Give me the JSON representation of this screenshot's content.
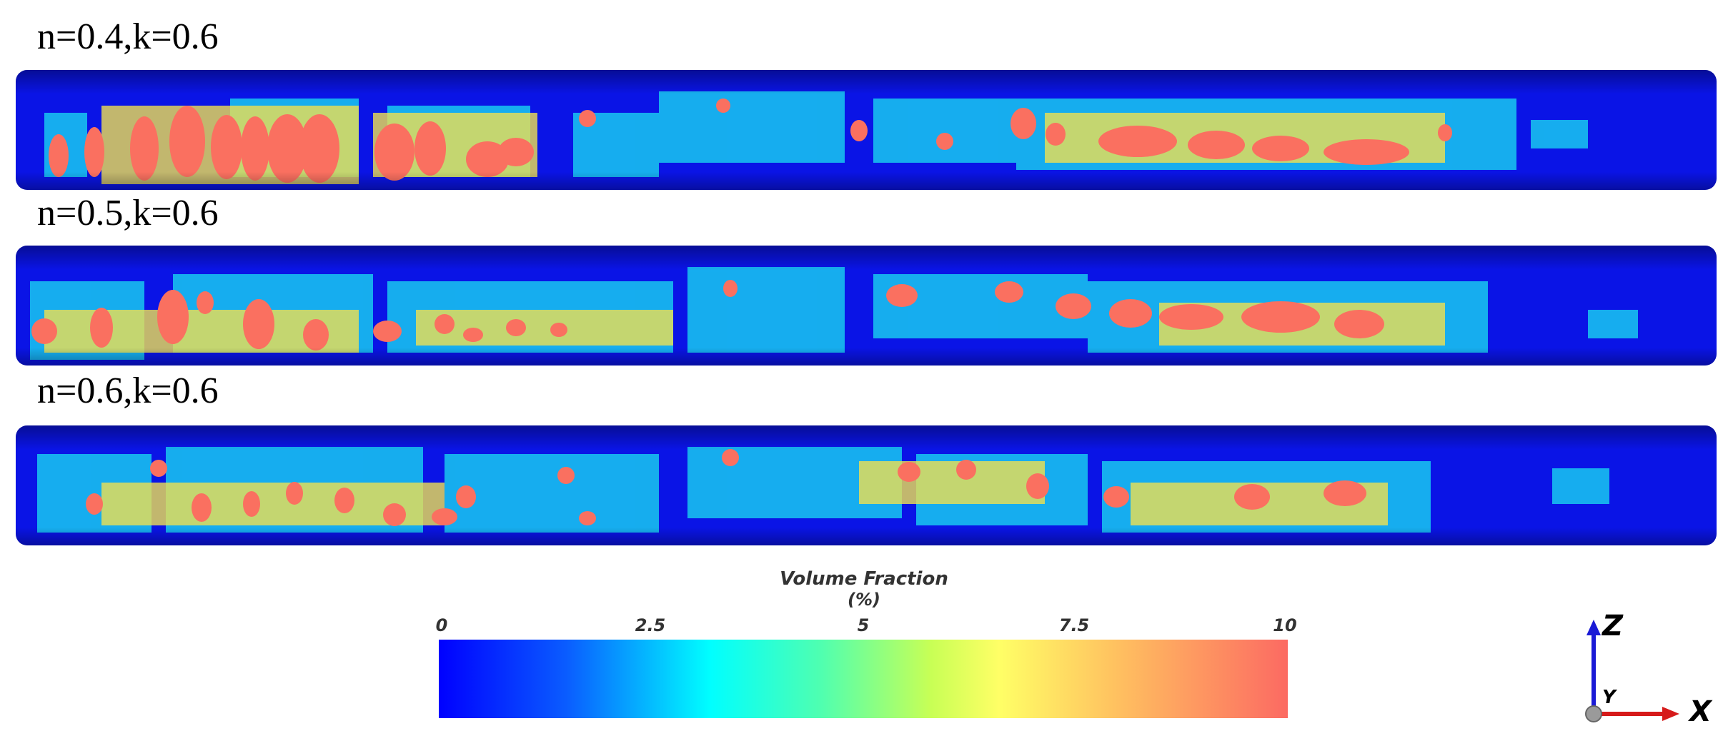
{
  "panels": [
    {
      "label": "n=0.4,k=0.6"
    },
    {
      "label": "n=0.5,k=0.6"
    },
    {
      "label": "n=0.6,k=0.6"
    }
  ],
  "colorbar": {
    "title": "Volume Fraction",
    "unit": "(%)",
    "ticks": [
      "0",
      "2.5",
      "5",
      "7.5",
      "10"
    ],
    "min": 0,
    "max": 10,
    "colors": [
      "#0000ff",
      "#00ffff",
      "#ffff66",
      "#fc6a62"
    ]
  },
  "axes": {
    "z_label": "Z",
    "y_label": "Y",
    "x_label": "X",
    "z_color": "#1a1ad6",
    "x_color": "#d61a1a"
  }
}
